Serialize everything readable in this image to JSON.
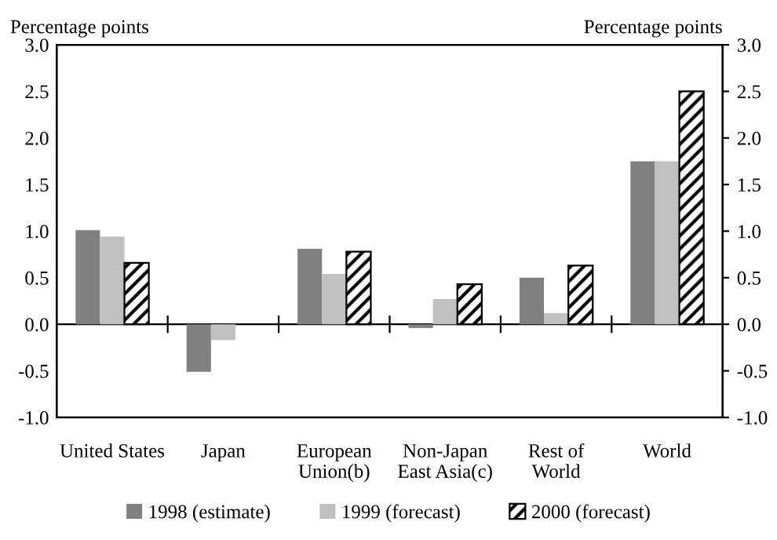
{
  "chart_data": {
    "type": "bar",
    "categories": [
      "United States",
      "Japan",
      "European\nUnion(b)",
      "Non-Japan\nEast Asia(c)",
      "Rest of\nWorld",
      "World"
    ],
    "series": [
      {
        "name": "1998 (estimate)",
        "color": "#808080",
        "values": [
          1.01,
          -0.51,
          0.81,
          -0.04,
          0.5,
          1.75
        ]
      },
      {
        "name": "1999 (forecast)",
        "color": "#c0c0c0",
        "values": [
          0.94,
          -0.17,
          0.54,
          0.27,
          0.12,
          1.75
        ]
      },
      {
        "name": "2000 (forecast)",
        "color": "#000000",
        "values": [
          0.66,
          null,
          0.78,
          0.43,
          0.63,
          2.5
        ]
      }
    ],
    "ylabel": "Percentage points",
    "y2label": "Percentage points",
    "ylim": [
      -1.0,
      3.0
    ],
    "yticks": [
      {
        "value": -1.0,
        "label": "-1.0"
      },
      {
        "value": -0.5,
        "label": "-0.5"
      },
      {
        "value": 0.0,
        "label": "0.0"
      },
      {
        "value": 0.5,
        "label": "0.5"
      },
      {
        "value": 1.0,
        "label": "1.0"
      },
      {
        "value": 1.5,
        "label": "1.5"
      },
      {
        "value": 2.0,
        "label": "2.0"
      },
      {
        "value": 2.5,
        "label": "2.5"
      },
      {
        "value": 3.0,
        "label": "3.0"
      }
    ],
    "y2lim": [
      -1.0,
      3.0
    ],
    "y2ticks": [
      {
        "value": -1.0,
        "label": "-1.0"
      },
      {
        "value": -0.5,
        "label": "-0.5"
      },
      {
        "value": 0.0,
        "label": "0.0"
      },
      {
        "value": 0.5,
        "label": "0.5"
      },
      {
        "value": 1.0,
        "label": "1.0"
      },
      {
        "value": 1.5,
        "label": "1.5"
      },
      {
        "value": 2.0,
        "label": "2.0"
      },
      {
        "value": 2.5,
        "label": "2.5"
      },
      {
        "value": 3.0,
        "label": "3.0"
      }
    ],
    "legend": "bottom"
  }
}
